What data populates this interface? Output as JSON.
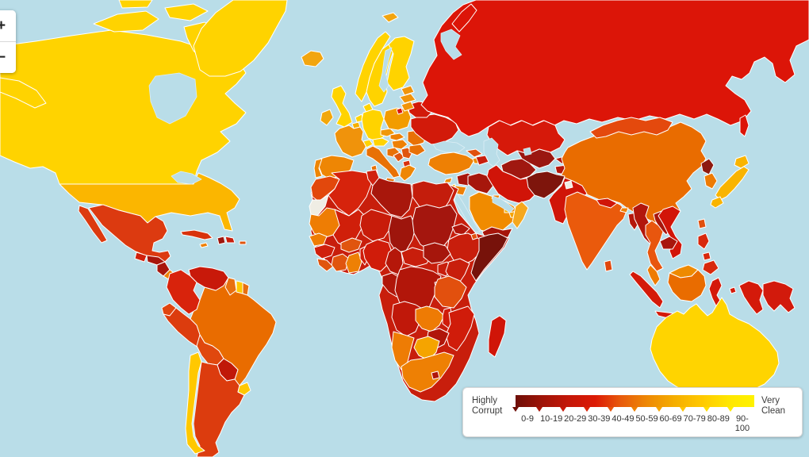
{
  "zoom_controls": {
    "zoom_in_label": "+",
    "zoom_out_label": "−"
  },
  "legend": {
    "left_label": "Highly Corrupt",
    "right_label": "Very Clean",
    "ranges": [
      "0-9",
      "10-19",
      "20-29",
      "30-39",
      "40-49",
      "50-59",
      "60-69",
      "70-79",
      "80-89",
      "90-100"
    ],
    "gradient": [
      "#6E0F08",
      "#9E1408",
      "#C41708",
      "#DC1A05",
      "#E85C0C",
      "#EE8A04",
      "#F5AE00",
      "#FFC800",
      "#FFE600",
      "#FFF200"
    ],
    "tick_colors": [
      "#6E0F08",
      "#A81508",
      "#C81708",
      "#DC2406",
      "#E8560C",
      "#EE8004",
      "#F5A400",
      "#FFC400",
      "#FFDE00",
      "#FFEC00"
    ]
  },
  "map": {
    "ocean_color": "#B9DDE8",
    "border_color": "#FFFFFF",
    "no_data_color": "#EFEDE4",
    "regions": {
      "sea": "#B9DDE8",
      "greenland": "#FFD300",
      "canada": "#FFD300",
      "usa": "#FBB600",
      "mexico": "#DC3A10",
      "guatemala": "#D0200C",
      "honduras": "#A8160C",
      "nicaragua": "#A8160C",
      "costa-rica": "#EE8004",
      "panama": "#D0200C",
      "cuba": "#D8320C",
      "jamaica": "#EE8004",
      "haiti": "#9E150C",
      "dominican-republic": "#C81E0C",
      "puerto-rico": "#E0550E",
      "venezuela": "#C8190A",
      "colombia": "#D8230C",
      "guyana": "#E87010",
      "suriname": "#FFC800",
      "french-guiana": "#E87010",
      "ecuador": "#E04510",
      "peru": "#DC3C0E",
      "brazil": "#E96C00",
      "bolivia": "#E0480E",
      "paraguay": "#C01808",
      "chile": "#FFC800",
      "argentina": "#DC3C0E",
      "uruguay": "#FFC800",
      "iceland": "#F2A50F",
      "svalbard": "#F2A50F",
      "norway": "#FFD300",
      "sweden": "#FFD300",
      "finland": "#FFD300",
      "denmark": "#FFD300",
      "uk": "#FFD300",
      "ireland": "#F2A70B",
      "netherlands": "#FFD300",
      "belgium": "#F5B000",
      "germany": "#FFD300",
      "france": "#F0930B",
      "spain": "#EE8604",
      "portugal": "#EE8604",
      "switzerland": "#FFD300",
      "austria": "#FFD300",
      "italy": "#E87106",
      "czechia": "#F0980A",
      "slovakia": "#EE8004",
      "hungary": "#EE8004",
      "poland": "#F29C00",
      "croatia": "#E87106",
      "bosnia": "#E0550E",
      "serbia": "#E0550E",
      "albania": "#D8300C",
      "greece": "#EE8604",
      "romania": "#E87106",
      "bulgaria": "#E87106",
      "moldova": "#E0500E",
      "ukraine": "#D21A0A",
      "belarus": "#D21A0A",
      "lithuania": "#F0940A",
      "latvia": "#F0940A",
      "estonia": "#F0940A",
      "russia": "#DC1508",
      "kazakhstan": "#D6190A",
      "uzbekistan": "#9A1710",
      "turkmenistan": "#A01810",
      "kyrgyzstan": "#B5170C",
      "tajikistan": "#B5170C",
      "afghanistan": "#7E150C",
      "pakistan": "#D01508",
      "iran": "#D01408",
      "turkey": "#EE8004",
      "cyprus": "#EE8604",
      "georgia": "#E0500E",
      "armenia": "#EE8A04",
      "azerbaijan": "#C81E0C",
      "syria": "#A8160C",
      "israel": "#F5A400",
      "jordan": "#EE8004",
      "iraq": "#A6170C",
      "saudi-arabia": "#F08B00",
      "kuwait": "#EE8004",
      "qatar": "#F5B000",
      "uae": "#F5A400",
      "oman": "#F5A81E",
      "yemen": "#A6150A",
      "india": "#EA5A0C",
      "nepal": "#D01508",
      "bhutan": "#EE8004",
      "bangladesh": "#B5170C",
      "sri-lanka": "#E0480E",
      "kashmir": "#EFEDE4",
      "myanmar": "#B2170C",
      "thailand": "#E8560E",
      "laos": "#A8160C",
      "cambodia": "#A8160C",
      "vietnam": "#D21508",
      "malaysia": "#EE7C04",
      "malaysia-borneo": "#EE8A00",
      "indonesia": "#D41A0A",
      "kalimantan": "#E96C00",
      "png": "#D21A0C",
      "philippines": "#D8280C",
      "taiwan": "#E0500E",
      "china": "#E96C00",
      "mongolia": "#E4490D",
      "north-korea": "#8E1A10",
      "south-korea": "#ED7B04",
      "japan": "#F9B400",
      "africa-base": "#C81E0C",
      "morocco": "#E2480C",
      "western-sahara": "#EFEDE4",
      "algeria": "#D6230C",
      "tunisia": "#D02110",
      "libya": "#A8170C",
      "egypt": "#C41D0C",
      "mauritania": "#EE7D04",
      "mali": "#D01F0A",
      "niger": "#C81C0A",
      "chad": "#9E150C",
      "sudan": "#A4160E",
      "eritrea": "#B0160C",
      "djibouti": "#E0500E",
      "ethiopia": "#C81E0C",
      "somalia": "#77120A",
      "senegal": "#EE7D04",
      "guinea": "#D0200C",
      "sierra-leone": "#E0550E",
      "ivory-coast": "#E0550E",
      "ghana": "#EE8004",
      "burkina-faso": "#E0550E",
      "togo-benin": "#D01C0A",
      "nigeria": "#D01C0A",
      "cameroon": "#B5170A",
      "car": "#C81E0C",
      "south-sudan": "#A6160C",
      "uganda": "#C81E0C",
      "kenya": "#C81E0C",
      "congo": "#B0160A",
      "drc": "#B2160A",
      "rwanda-burundi": "#C81E0C",
      "tanzania": "#E2500E",
      "angola": "#C0180A",
      "zambia": "#EE7B04",
      "malawi": "#D01C0A",
      "mozambique": "#D01C0A",
      "zimbabwe": "#B0160A",
      "botswana": "#F5A400",
      "namibia": "#EE7C04",
      "south-africa": "#EE8004",
      "lesotho": "#B0160A",
      "madagascar": "#D01508",
      "australia": "#FFD400"
    }
  }
}
